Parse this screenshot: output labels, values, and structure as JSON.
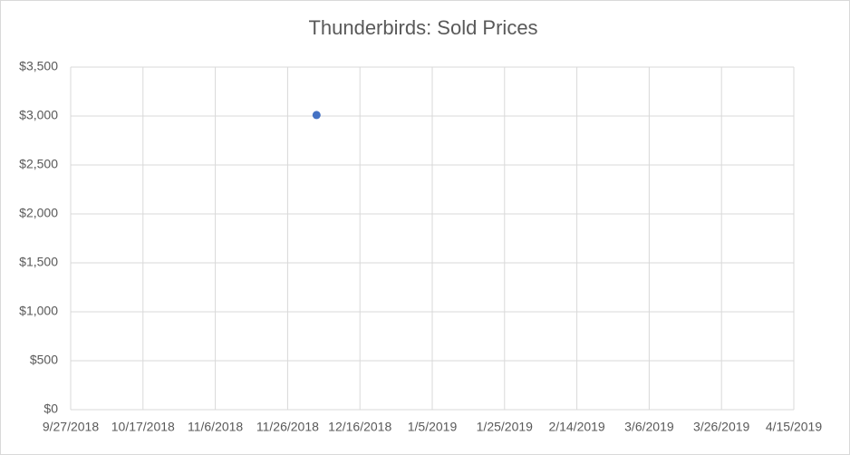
{
  "chart_data": {
    "type": "scatter",
    "title": "Thunderbirds: Sold Prices",
    "x": [
      "12/4/2018"
    ],
    "values": [
      3010
    ],
    "color": "#4472c4",
    "xlim": [
      "9/27/2018",
      "4/15/2019"
    ],
    "xticks": [
      "9/27/2018",
      "10/17/2018",
      "11/6/2018",
      "11/26/2018",
      "12/16/2018",
      "1/5/2019",
      "1/25/2019",
      "2/14/2019",
      "3/6/2019",
      "3/26/2019",
      "4/15/2019"
    ],
    "ylim": [
      0,
      3500
    ],
    "yticks": [
      {
        "value": 0,
        "label": "$0"
      },
      {
        "value": 500,
        "label": "$500"
      },
      {
        "value": 1000,
        "label": "$1,000"
      },
      {
        "value": 1500,
        "label": "$1,500"
      },
      {
        "value": 2000,
        "label": "$2,000"
      },
      {
        "value": 2500,
        "label": "$2,500"
      },
      {
        "value": 3000,
        "label": "$3,000"
      },
      {
        "value": 3500,
        "label": "$3,500"
      }
    ],
    "grid": true
  }
}
